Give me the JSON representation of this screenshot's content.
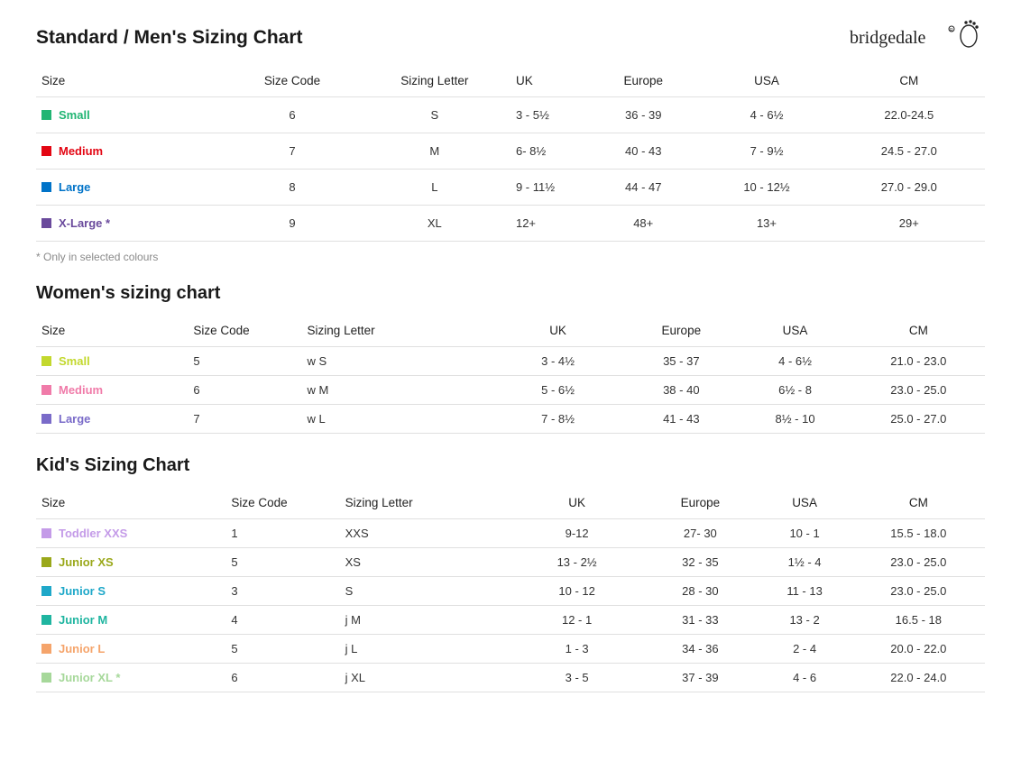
{
  "brand": "bridgedale",
  "headers": {
    "size": "Size",
    "code": "Size Code",
    "letter": "Sizing Letter",
    "uk": "UK",
    "europe": "Europe",
    "usa": "USA",
    "cm": "CM"
  },
  "mens": {
    "title": "Standard / Men's Sizing Chart",
    "footnote": "* Only in selected colours",
    "rows": [
      {
        "label": "Small",
        "color": "#21b573",
        "code": "6",
        "letter": "S",
        "uk": "3 - 5½",
        "europe": "36 - 39",
        "usa": "4 - 6½",
        "cm": "22.0-24.5"
      },
      {
        "label": "Medium",
        "color": "#e30613",
        "code": "7",
        "letter": "M",
        "uk": "6- 8½",
        "europe": "40 - 43",
        "usa": "7 - 9½",
        "cm": "24.5 - 27.0"
      },
      {
        "label": "Large",
        "color": "#0073c8",
        "code": "8",
        "letter": "L",
        "uk": "9 - 11½",
        "europe": "44 - 47",
        "usa": "10 - 12½",
        "cm": "27.0 - 29.0"
      },
      {
        "label": "X-Large *",
        "color": "#6a4a9c",
        "code": "9",
        "letter": "XL",
        "uk": "12+",
        "europe": "48+",
        "usa": "13+",
        "cm": "29+"
      }
    ]
  },
  "womens": {
    "title": "Women's sizing chart",
    "rows": [
      {
        "label": "Small",
        "color": "#c3d82e",
        "code": "5",
        "letter": "w S",
        "uk": "3 - 4½",
        "europe": "35 - 37",
        "usa": "4 - 6½",
        "cm": "21.0 - 23.0"
      },
      {
        "label": "Medium",
        "color": "#f07ba9",
        "code": "6",
        "letter": "w M",
        "uk": "5 - 6½",
        "europe": "38 - 40",
        "usa": "6½ - 8",
        "cm": "23.0 - 25.0"
      },
      {
        "label": "Large",
        "color": "#7a6bc9",
        "code": "7",
        "letter": "w L",
        "uk": "7 - 8½",
        "europe": "41 - 43",
        "usa": "8½ - 10",
        "cm": "25.0 - 27.0"
      }
    ]
  },
  "kids": {
    "title": "Kid's Sizing Chart",
    "rows": [
      {
        "label": "Toddler XXS",
        "color": "#c49be8",
        "code": "1",
        "letter": "XXS",
        "uk": "9-12",
        "europe": "27- 30",
        "usa": "10 - 1",
        "cm": "15.5 - 18.0"
      },
      {
        "label": "Junior XS",
        "color": "#9aa81a",
        "code": "5",
        "letter": "XS",
        "uk": "13 - 2½",
        "europe": "32 - 35",
        "usa": "1½ - 4",
        "cm": "23.0 - 25.0"
      },
      {
        "label": "Junior S",
        "color": "#1fa8c9",
        "code": "3",
        "letter": "S",
        "uk": "10 - 12",
        "europe": "28 - 30",
        "usa": "11 - 13",
        "cm": "23.0 - 25.0"
      },
      {
        "label": "Junior M",
        "color": "#1fb5a0",
        "code": "4",
        "letter": "j M",
        "uk": "12 - 1",
        "europe": "31 - 33",
        "usa": "13 - 2",
        "cm": "16.5 - 18"
      },
      {
        "label": "Junior L",
        "color": "#f5a46b",
        "code": "5",
        "letter": "j L",
        "uk": "1 - 3",
        "europe": "34 - 36",
        "usa": "2 - 4",
        "cm": "20.0 - 22.0"
      },
      {
        "label": "Junior XL *",
        "color": "#a6d89a",
        "code": "6",
        "letter": "j XL",
        "uk": "3 - 5",
        "europe": "37 - 39",
        "usa": "4 - 6",
        "cm": "22.0 - 24.0"
      }
    ]
  }
}
